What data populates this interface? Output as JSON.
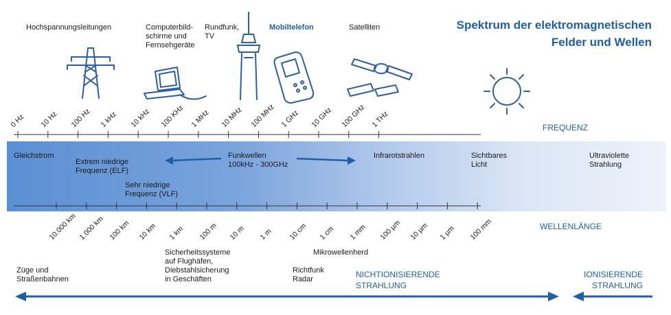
{
  "title": {
    "line1": "Spektrum der elektromagnetischen",
    "line2": "Felder und Wellen"
  },
  "sources": [
    {
      "id": "hochspannung",
      "label": "Hochspannungsleitungen",
      "highlight": false
    },
    {
      "id": "computer",
      "label": "Computerbild-\nschirme und\nFernsehgeräte",
      "highlight": false
    },
    {
      "id": "rundfunk",
      "label": "Rundfunk,\nTV",
      "highlight": false
    },
    {
      "id": "mobiltelefon",
      "label": "Mobiltelefon",
      "highlight": true
    },
    {
      "id": "satelliten",
      "label": "Satelliten",
      "highlight": false
    }
  ],
  "frequency": {
    "axis_label": "FREQUENZ",
    "ticks": [
      "0 Hz",
      "10 Hz",
      "100 Hz",
      "1 kHz",
      "10 kHz",
      "100 KHz",
      "1 MHz",
      "10 MHz",
      "100 MHz",
      "1 GHz",
      "10 GHz",
      "100 GHz",
      "1 THz"
    ]
  },
  "wavelength": {
    "axis_label": "WELLENLÄNGE",
    "ticks": [
      "10.000 km",
      "1.000 km",
      "100 km",
      "10 km",
      "1 km",
      "100 m",
      "10 m",
      "1 m",
      "10 cm",
      "1 cm",
      "1 mm",
      "100 µm",
      "10 µm",
      "1 µm",
      "100 mm"
    ]
  },
  "band_labels": {
    "gleichstrom": "Gleichstrom",
    "elf": "Extrem niedrige\nFrequenz (ELF)",
    "vlf": "Sehr niedrige\nFrequenz (VLF)",
    "funkwellen": "Funkwellen\n100kHz - 300GHz",
    "infrarot": "Infrarotstrahlen",
    "sichtbar": "Sichtbares\nLicht",
    "uv": "Ultraviolette\nStrahlung"
  },
  "applications": {
    "zuege": "Züge und\nStraßenbahnen",
    "sicherheit": "Sicherheitssysteme\nauf Flughäfen,\nDiebstahlsicherung\nin Geschäften",
    "mikrowelle": "Mikrowellenherd",
    "richtfunk": "Richtfunk\nRadar"
  },
  "radiation": {
    "non_ionizing": "NICHTIONISIERENDE\nSTRAHLUNG",
    "ionizing": "IONISIERENDE\nSTRAHLUNG"
  },
  "colors": {
    "accent": "#1e5fa8",
    "band_start": "#5b8fd4",
    "band_end": "#eef2fa"
  },
  "icons": [
    "pylon-icon",
    "computer-icon",
    "radio-tower-icon",
    "mobile-phone-icon",
    "satellite-icon",
    "sun-icon"
  ]
}
